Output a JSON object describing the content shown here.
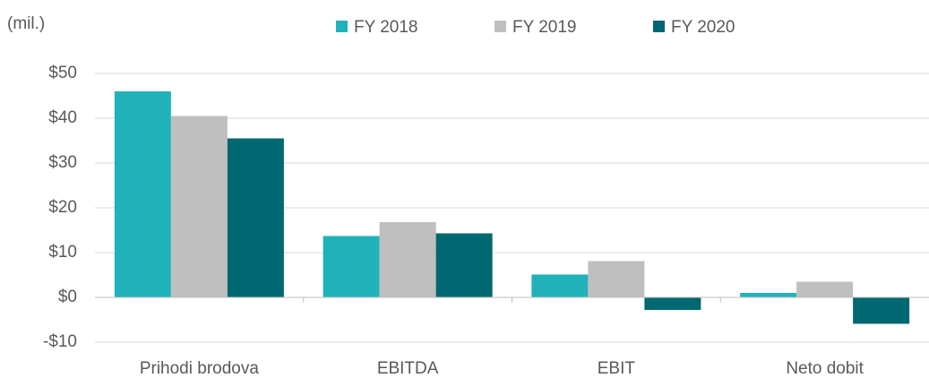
{
  "chart_data": {
    "type": "bar",
    "annotation": "(mil.)",
    "categories": [
      "Prihodi brodova",
      "EBITDA",
      "EBIT",
      "Neto dobit"
    ],
    "series": [
      {
        "name": "FY 2018",
        "color": "#20b2b8",
        "values": [
          46,
          13.7,
          5.1,
          1
        ]
      },
      {
        "name": "FY 2019",
        "color": "#bfbfbf",
        "values": [
          40.5,
          16.8,
          8.1,
          3.5
        ]
      },
      {
        "name": "FY 2020",
        "color": "#006870",
        "values": [
          35.5,
          14.3,
          -2.8,
          -5.9
        ]
      }
    ],
    "ylim": [
      -10,
      50
    ],
    "yticks": [
      {
        "value": -10,
        "label": "-$10"
      },
      {
        "value": 0,
        "label": "$0"
      },
      {
        "value": 10,
        "label": "$10"
      },
      {
        "value": 20,
        "label": "$20"
      },
      {
        "value": 30,
        "label": "$30"
      },
      {
        "value": 40,
        "label": "$40"
      },
      {
        "value": 50,
        "label": "$50"
      }
    ],
    "grid": true,
    "legend": "top"
  }
}
